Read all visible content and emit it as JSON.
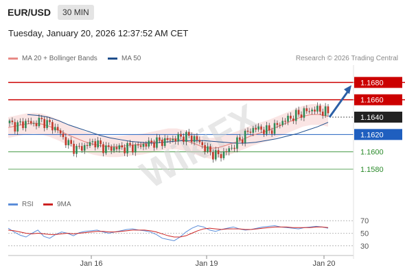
{
  "header": {
    "symbol": "EUR/USD",
    "timeframe": "30 MIN",
    "datetime": "Tuesday, January 20, 2026 12:37:52 AM CET"
  },
  "legend": {
    "items": [
      {
        "label": "MA 20 + Bollinger Bands",
        "color": "#e88a86"
      },
      {
        "label": "MA 50",
        "color": "#1f4e8c"
      }
    ],
    "credit": "Research © 2026 Trading Central"
  },
  "rsi_legend": {
    "items": [
      {
        "label": "RSI",
        "color": "#5b8dd9"
      },
      {
        "label": "9MA",
        "color": "#cc2222"
      }
    ]
  },
  "colors": {
    "resistance": "#cc0000",
    "support_blue": "#1f5fbf",
    "support_green": "#2a8a2a",
    "current": "#222222",
    "arrow": "#2b5fa6",
    "candle_up": "#2e8b57",
    "candle_down": "#c0392b"
  },
  "chart_data": {
    "type": "candlestick",
    "ylim": [
      1.155,
      1.17
    ],
    "x_ticks": [
      "Jan 16",
      "Jan 19",
      "Jan 20"
    ],
    "levels": [
      {
        "value": 1.168,
        "label": "1.1680",
        "kind": "resistance"
      },
      {
        "value": 1.166,
        "label": "1.1660",
        "kind": "resistance"
      },
      {
        "value": 1.164,
        "label": "1.1640",
        "kind": "current"
      },
      {
        "value": 1.162,
        "label": "1.1620",
        "kind": "support_blue"
      },
      {
        "value": 1.16,
        "label": "1.1600",
        "kind": "support_green"
      },
      {
        "value": 1.158,
        "label": "1.1580",
        "kind": "support_green"
      }
    ],
    "price_path": [
      1.1633,
      1.163,
      1.1632,
      1.1635,
      1.1632,
      1.1636,
      1.1634,
      1.163,
      1.1625,
      1.1615,
      1.1608,
      1.1603,
      1.1605,
      1.1608,
      1.1612,
      1.1607,
      1.1604,
      1.1604,
      1.1605,
      1.1604,
      1.1606,
      1.1605,
      1.1608,
      1.1609,
      1.1611,
      1.1612,
      1.1613,
      1.1614,
      1.1616,
      1.1618,
      1.1617,
      1.1615,
      1.1608,
      1.1601,
      1.1597,
      1.1596,
      1.16,
      1.1605,
      1.1612,
      1.1618,
      1.1625,
      1.1627,
      1.1626,
      1.1624,
      1.1628,
      1.1633,
      1.1637,
      1.164,
      1.1643,
      1.1646,
      1.1648,
      1.1649,
      1.1647,
      1.1645
    ],
    "ma20": [
      1.1628,
      1.163,
      1.1632,
      1.1633,
      1.1632,
      1.1629,
      1.1625,
      1.162,
      1.1616,
      1.1612,
      1.1609,
      1.1607,
      1.1606,
      1.1606,
      1.1607,
      1.1608,
      1.1609,
      1.1611,
      1.1613,
      1.1615,
      1.1615,
      1.1613,
      1.161,
      1.1606,
      1.1604,
      1.1605,
      1.1608,
      1.1611,
      1.1615,
      1.1619,
      1.1622,
      1.1625,
      1.1629,
      1.1633,
      1.1637,
      1.1641,
      1.1643,
      1.1643,
      1.1641
    ],
    "ma50": [
      1.1643,
      1.1642,
      1.164,
      1.1636,
      1.1631,
      1.1627,
      1.1623,
      1.1619,
      1.1616,
      1.1614,
      1.1612,
      1.1611,
      1.161,
      1.1611,
      1.1612,
      1.1613,
      1.1613,
      1.1613,
      1.1612,
      1.1611,
      1.161,
      1.161,
      1.1611,
      1.1613,
      1.1615,
      1.1618,
      1.1621,
      1.1625,
      1.1629,
      1.1634
    ],
    "rsi": {
      "levels": [
        70,
        50,
        30
      ],
      "ylim": [
        20,
        80
      ]
    },
    "rsi_values": [
      58,
      52,
      47,
      44,
      50,
      55,
      45,
      42,
      48,
      52,
      50,
      46,
      51,
      53,
      54,
      55,
      52,
      50,
      52,
      54,
      56,
      57,
      55,
      54,
      52,
      48,
      42,
      40,
      38,
      44,
      52,
      58,
      62,
      60,
      55,
      53,
      56,
      58,
      60,
      57,
      55,
      56,
      58,
      60,
      61,
      62,
      60,
      59,
      58,
      57,
      59,
      60,
      61,
      60,
      58
    ],
    "rsi_ma": [
      55,
      54,
      52,
      50,
      49,
      50,
      49,
      48,
      48,
      49,
      50,
      49,
      50,
      51,
      52,
      53,
      53,
      52,
      52,
      53,
      54,
      55,
      55,
      55,
      54,
      52,
      49,
      46,
      44,
      44,
      46,
      50,
      54,
      57,
      58,
      57,
      56,
      57,
      57,
      57,
      56,
      56,
      57,
      58,
      59,
      60,
      60,
      60,
      59,
      59,
      59,
      59,
      60,
      60,
      59
    ]
  }
}
